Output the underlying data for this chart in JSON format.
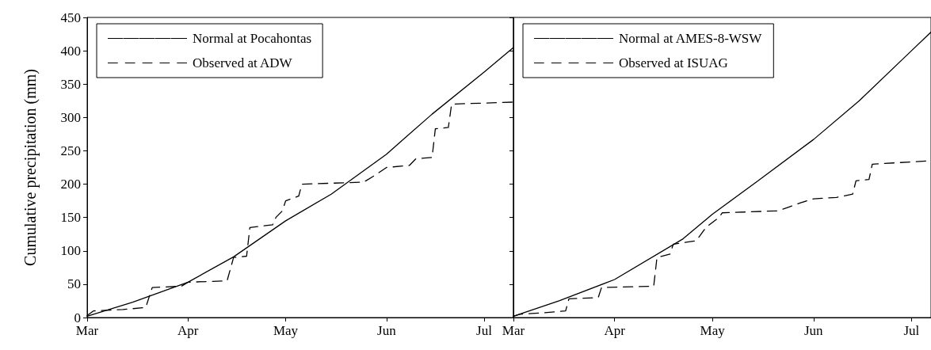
{
  "chart_data": [
    {
      "type": "line",
      "ylabel": "Cumulative precipitation (mm)",
      "xlim": [
        "--03-01",
        "--07-10"
      ],
      "ylim": [
        0,
        450
      ],
      "yticks": [
        0,
        50,
        100,
        150,
        200,
        250,
        300,
        350,
        400,
        450
      ],
      "xticks": [
        {
          "value": "--03-01",
          "label": "Mar"
        },
        {
          "value": "--04-01",
          "label": "Apr"
        },
        {
          "value": "--05-01",
          "label": "May"
        },
        {
          "value": "--06-01",
          "label": "Jun"
        },
        {
          "value": "--07-01",
          "label": "Jul"
        }
      ],
      "grid": false,
      "legend": "top left",
      "marker": "none",
      "series": [
        {
          "name": "Normal at Pocahontas",
          "color": "#000000",
          "line_style": "solid",
          "x": [
            "--03-01",
            "--03-15",
            "--04-01",
            "--04-15",
            "--05-01",
            "--05-15",
            "--06-01",
            "--06-15",
            "--07-01",
            "--07-10"
          ],
          "values": [
            2,
            23,
            53,
            91,
            145,
            185,
            245,
            305,
            368,
            405
          ]
        },
        {
          "name": "Observed at ADW",
          "color": "#000000",
          "line_style": "dashed",
          "x": [
            "--03-01",
            "--03-03",
            "--03-12",
            "--03-19",
            "--03-21",
            "--03-30",
            "--04-01",
            "--04-13",
            "--04-15",
            "--04-19",
            "--04-20",
            "--04-27",
            "--04-28",
            "--04-30",
            "--05-01",
            "--05-05",
            "--05-06",
            "--05-25",
            "--05-28",
            "--06-01",
            "--06-08",
            "--06-10",
            "--06-15",
            "--06-16",
            "--06-20",
            "--06-21",
            "--07-10"
          ],
          "values": [
            3,
            10,
            12,
            15,
            45,
            47,
            53,
            55,
            90,
            92,
            135,
            139,
            150,
            160,
            175,
            182,
            200,
            203,
            212,
            225,
            228,
            238,
            240,
            283,
            285,
            320,
            323
          ]
        }
      ]
    },
    {
      "type": "line",
      "xlim": [
        "--03-01",
        "--07-07"
      ],
      "ylim": [
        0,
        450
      ],
      "yticks": [
        0,
        50,
        100,
        150,
        200,
        250,
        300,
        350,
        400,
        450
      ],
      "xticks": [
        {
          "value": "--03-01",
          "label": "Mar"
        },
        {
          "value": "--04-01",
          "label": "Apr"
        },
        {
          "value": "--05-01",
          "label": "May"
        },
        {
          "value": "--06-01",
          "label": "Jun"
        },
        {
          "value": "--07-01",
          "label": "Jul"
        }
      ],
      "grid": false,
      "legend": "top left",
      "marker": "none",
      "tick_labels": "x",
      "series": [
        {
          "name": "Normal at AMES-8-WSW",
          "color": "#000000",
          "line_style": "solid",
          "x": [
            "--03-01",
            "--03-15",
            "--04-01",
            "--04-22",
            "--05-01",
            "--05-15",
            "--06-01",
            "--06-15",
            "--07-01",
            "--07-07"
          ],
          "values": [
            2,
            25,
            57,
            118,
            155,
            205,
            267,
            325,
            400,
            428
          ]
        },
        {
          "name": "Observed at ISUAG",
          "color": "#000000",
          "line_style": "dashed",
          "x": [
            "--03-01",
            "--03-03",
            "--03-10",
            "--03-17",
            "--03-18",
            "--03-27",
            "--03-28",
            "--04-13",
            "--04-14",
            "--04-18",
            "--04-19",
            "--04-26",
            "--04-29",
            "--05-03",
            "--05-04",
            "--05-21",
            "--05-24",
            "--05-28",
            "--06-01",
            "--06-08",
            "--06-13",
            "--06-14",
            "--06-18",
            "--06-19",
            "--07-07"
          ],
          "values": [
            2,
            5,
            7,
            10,
            28,
            30,
            45,
            47,
            90,
            95,
            110,
            115,
            135,
            150,
            157,
            160,
            165,
            172,
            178,
            180,
            185,
            205,
            207,
            230,
            235
          ]
        }
      ]
    }
  ]
}
